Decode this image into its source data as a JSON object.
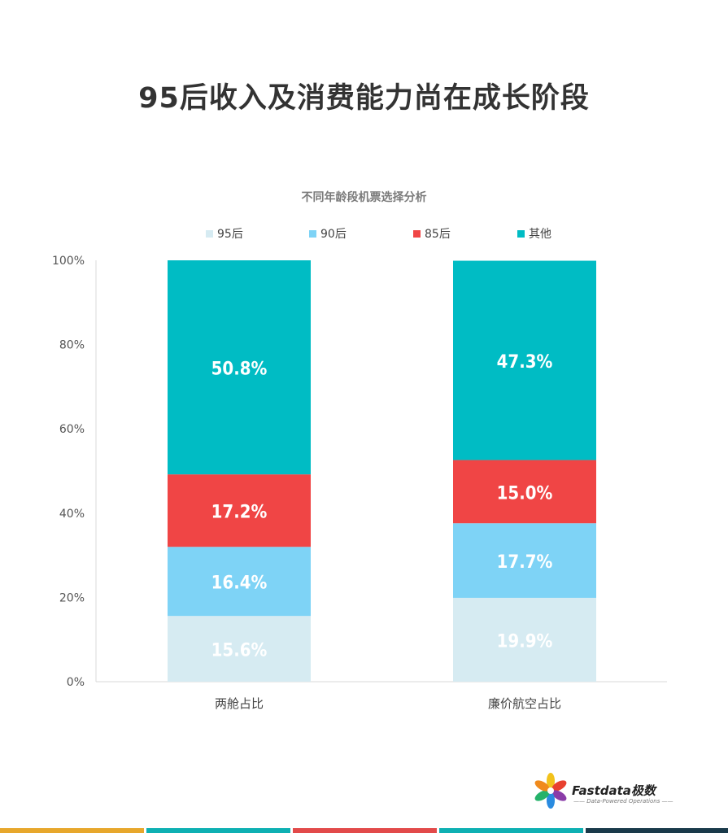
{
  "page_title": "95后收入及消费能力尚在成长阶段",
  "chart_data": {
    "type": "bar",
    "stacked": true,
    "title": "不同年龄段机票选择分析",
    "categories": [
      "两舱占比",
      "廉价航空占比"
    ],
    "series": [
      {
        "name": "95后",
        "color": "#d6ebf2",
        "values": [
          15.6,
          19.9
        ]
      },
      {
        "name": "90后",
        "color": "#7ed3f6",
        "values": [
          16.4,
          17.7
        ]
      },
      {
        "name": "85后",
        "color": "#f04545",
        "values": [
          17.2,
          15.0
        ]
      },
      {
        "name": "其他",
        "color": "#00bcc4",
        "values": [
          50.8,
          47.3
        ]
      }
    ],
    "data_labels": [
      [
        "15.6%",
        "16.4%",
        "17.2%",
        "50.8%"
      ],
      [
        "19.9%",
        "17.7%",
        "15.0%",
        "47.3%"
      ]
    ],
    "yticks": [
      "0%",
      "20%",
      "40%",
      "60%",
      "80%",
      "100%"
    ],
    "ylim": [
      0,
      100
    ],
    "legend_position": "top",
    "grid": false
  },
  "logo": {
    "name": "Fastdata极数",
    "tagline": "—— Data-Powered Operations ——"
  },
  "footer_colors": [
    "#e7a72c",
    "#0eb0b3",
    "#e24a4a",
    "#0eb0b3",
    "#1a3a4a"
  ]
}
